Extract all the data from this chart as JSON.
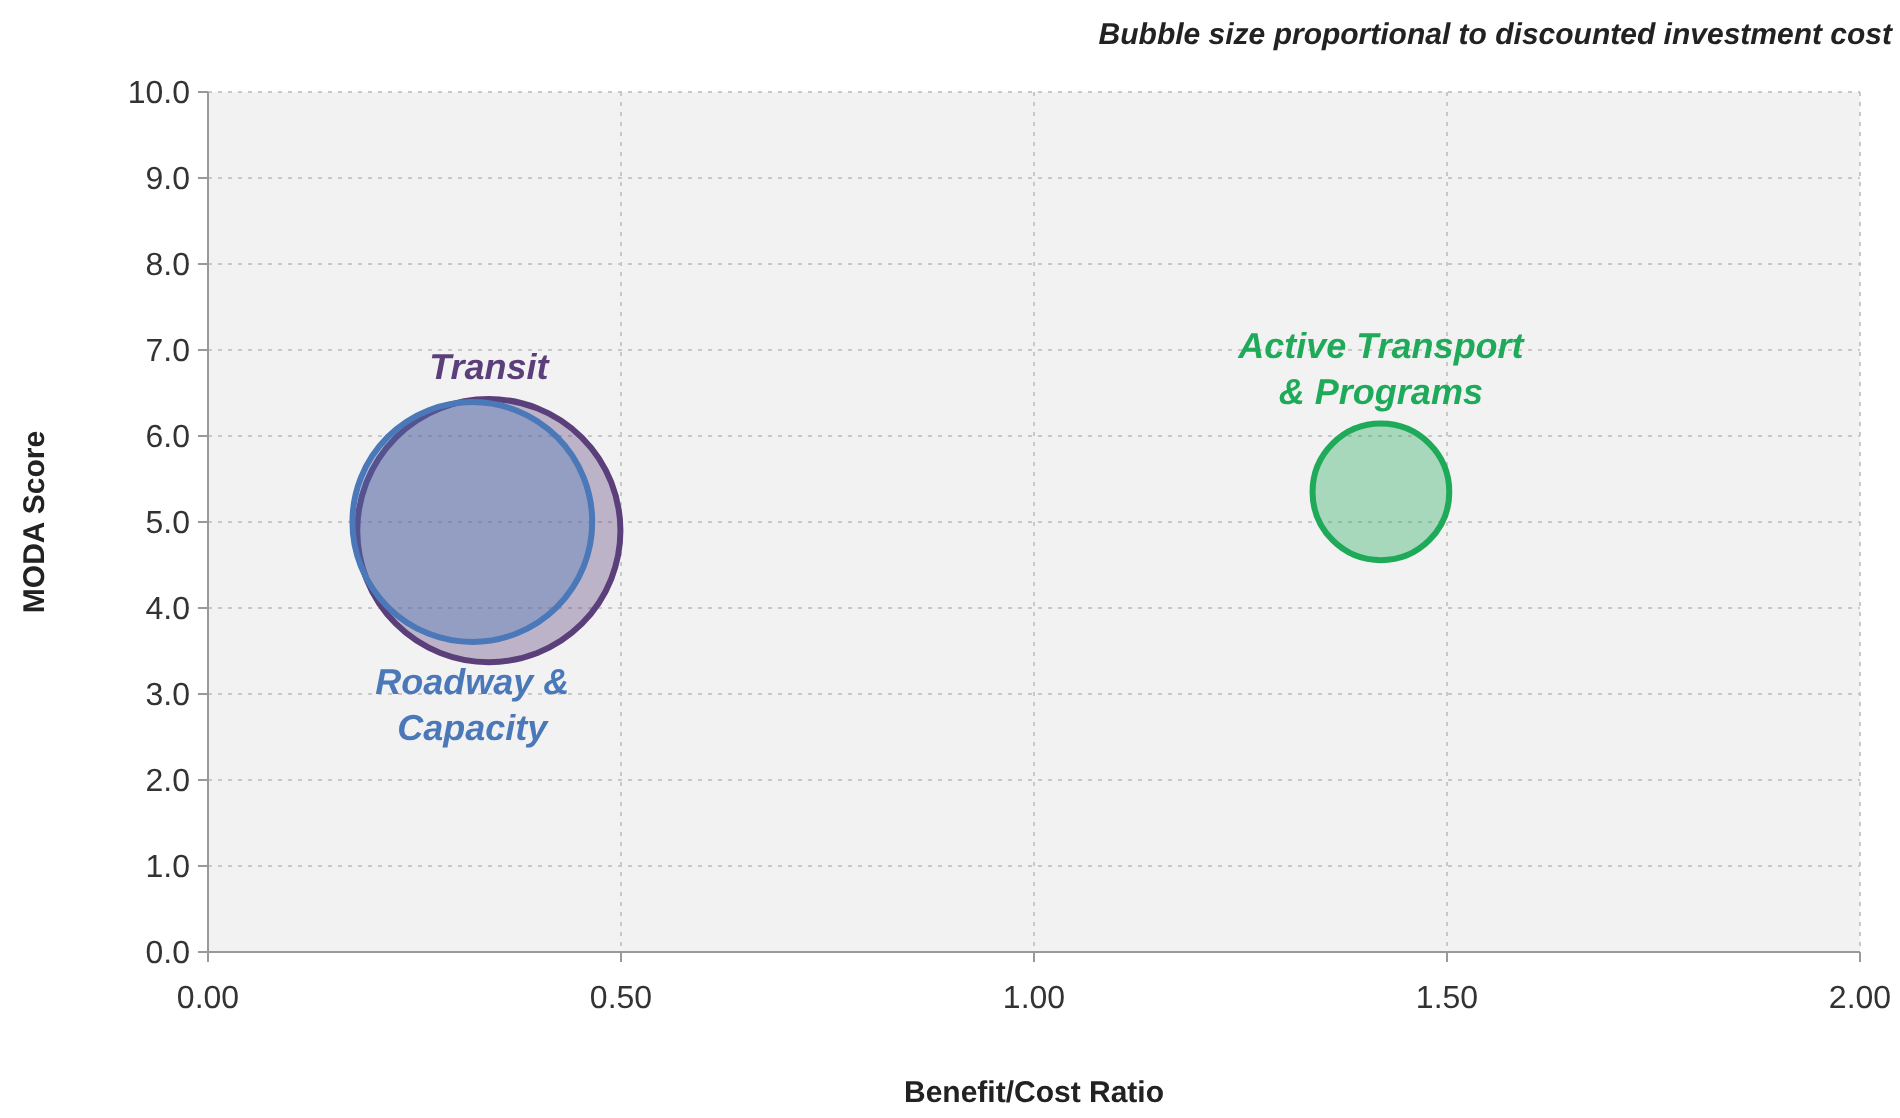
{
  "chart_data": {
    "type": "bubble",
    "title": "Bubble size proportional to discounted investment cost",
    "xlabel": "Benefit/Cost Ratio",
    "ylabel": "MODA Score",
    "xlim": [
      0,
      2
    ],
    "xticks": [
      {
        "value": 0,
        "label": "0.00"
      },
      {
        "value": 0.5,
        "label": "0.50"
      },
      {
        "value": 1,
        "label": "1.00"
      },
      {
        "value": 1.5,
        "label": "1.50"
      },
      {
        "value": 2,
        "label": "2.00"
      }
    ],
    "ylim": [
      0,
      10
    ],
    "yticks": [
      {
        "value": 0,
        "label": "0.0"
      },
      {
        "value": 1,
        "label": "1.0"
      },
      {
        "value": 2,
        "label": "2.0"
      },
      {
        "value": 3,
        "label": "3.0"
      },
      {
        "value": 4,
        "label": "4.0"
      },
      {
        "value": 5,
        "label": "5.0"
      },
      {
        "value": 6,
        "label": "6.0"
      },
      {
        "value": 7,
        "label": "7.0"
      },
      {
        "value": 8,
        "label": "8.0"
      },
      {
        "value": 9,
        "label": "9.0"
      },
      {
        "value": 10,
        "label": "10.0"
      }
    ],
    "grid": true,
    "series": [
      {
        "name": "Transit",
        "color": "#5a3f7a",
        "x": [
          0.34
        ],
        "values": [
          4.9
        ],
        "sizes": [
          1
        ]
      },
      {
        "name": "Roadway & Capacity",
        "color": "#4a78b8",
        "x": [
          0.32
        ],
        "values": [
          5.0
        ],
        "sizes": [
          0.83
        ]
      },
      {
        "name": "Active Transport & Programs",
        "color": "#1faa5a",
        "x": [
          1.42
        ],
        "values": [
          5.35
        ],
        "sizes": [
          0.27
        ]
      }
    ]
  }
}
